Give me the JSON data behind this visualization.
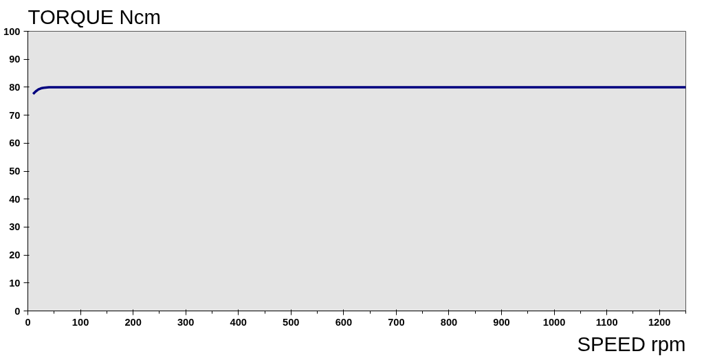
{
  "chart_data": {
    "type": "line",
    "xlabel": "SPEED rpm",
    "ylabel": "TORQUE Ncm",
    "x": [
      10,
      15,
      20,
      25,
      30,
      40,
      1250
    ],
    "series": [
      {
        "color": "#00007f",
        "values": [
          77.6,
          78.5,
          79.2,
          79.6,
          79.8,
          80,
          80
        ]
      }
    ],
    "xlim": [
      0,
      1250
    ],
    "xticks": [
      0,
      100,
      200,
      300,
      400,
      500,
      600,
      700,
      800,
      900,
      1000,
      1100,
      1200
    ],
    "ylim": [
      0,
      100
    ],
    "yticks": [
      0,
      10,
      20,
      30,
      40,
      50,
      60,
      70,
      80,
      90,
      100
    ],
    "grid": false,
    "marker": "none",
    "line_style": "solid"
  }
}
